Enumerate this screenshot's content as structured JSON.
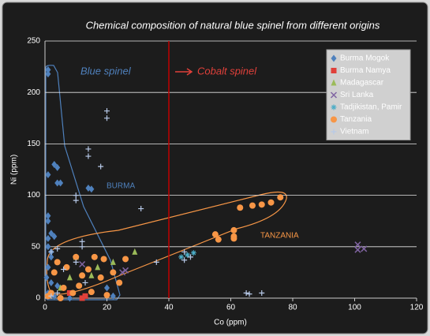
{
  "chart_data": {
    "type": "scatter",
    "title": "Chemical composition of natural blue spinel from different origins",
    "x_label": "Co (ppm)",
    "y_label": "Ni (ppm)",
    "xlim": [
      0,
      120
    ],
    "xticks": [
      0,
      20,
      40,
      60,
      80,
      100,
      120
    ],
    "ylim": [
      0,
      250
    ],
    "yticks": [
      0,
      50,
      100,
      150,
      200,
      250
    ],
    "grid": true,
    "legend": "upper right",
    "reference_line": {
      "x": 40,
      "color": "#c00000"
    },
    "annotations": [
      "Blue spinel",
      "Cobalt spinel",
      "BURMA",
      "TANZANIA"
    ],
    "series": [
      {
        "name": "Burma Mogok",
        "color": "#4f81bd",
        "marker": "diamond",
        "x": [
          1,
          1,
          1,
          3,
          4,
          5,
          4,
          1,
          1,
          2,
          3,
          1,
          2,
          14,
          15,
          1,
          2,
          1,
          0.5,
          2,
          4,
          1,
          3,
          20,
          22,
          8
        ],
        "values": [
          222,
          218,
          120,
          130,
          112,
          112,
          127,
          80,
          75,
          63,
          60,
          58,
          45,
          107,
          106,
          50,
          40,
          30,
          20,
          15,
          12,
          5,
          2,
          10,
          2,
          0
        ]
      },
      {
        "name": "Burma Namya",
        "color": "#e0403a",
        "marker": "square",
        "x": [
          12,
          13,
          8
        ],
        "values": [
          0,
          2,
          5
        ]
      },
      {
        "name": "Madagascar",
        "color": "#9bbb59",
        "marker": "triangle",
        "x": [
          10,
          29,
          17,
          8,
          15,
          22,
          5
        ],
        "values": [
          40,
          45,
          30,
          20,
          22,
          35,
          10
        ]
      },
      {
        "name": "Sri Lanka",
        "color": "#8064a2",
        "marker": "x",
        "x": [
          26,
          25,
          12,
          101,
          103,
          101
        ],
        "values": [
          27,
          25,
          33,
          52,
          48,
          47
        ]
      },
      {
        "name": "Tadjikistan, Pamir",
        "color": "#4bacc6",
        "marker": "star",
        "x": [
          46,
          48,
          44
        ],
        "values": [
          42,
          44,
          40
        ]
      },
      {
        "name": "Tanzania",
        "color": "#f79646",
        "marker": "circle",
        "x": [
          76,
          73,
          70,
          67,
          63,
          61,
          55,
          56,
          61,
          61,
          16,
          19,
          26,
          10,
          4,
          7,
          3,
          12,
          18,
          24,
          6,
          2,
          9,
          15,
          20,
          5,
          1,
          11,
          14,
          22
        ],
        "values": [
          98,
          93,
          91,
          90,
          88,
          66,
          62,
          57,
          58,
          60,
          40,
          38,
          38,
          40,
          35,
          30,
          25,
          22,
          20,
          15,
          10,
          5,
          5,
          6,
          3,
          0,
          2,
          12,
          28,
          25
        ]
      },
      {
        "name": "Vietnam",
        "color": "#b7c9e8",
        "marker": "plus",
        "x": [
          20,
          20,
          14,
          14,
          18,
          10,
          10,
          31,
          12,
          12,
          4,
          2,
          10,
          36,
          45,
          47,
          45,
          65,
          70,
          66,
          6,
          13,
          4,
          2
        ],
        "values": [
          182,
          175,
          145,
          138,
          128,
          100,
          95,
          87,
          55,
          50,
          48,
          45,
          35,
          35,
          45,
          40,
          37,
          5,
          5,
          4,
          28,
          15,
          5,
          2
        ]
      }
    ]
  }
}
